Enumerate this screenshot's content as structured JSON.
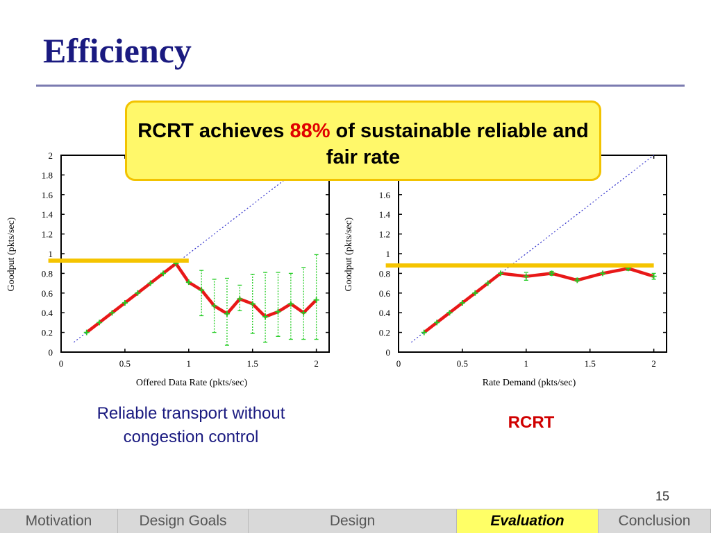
{
  "slide": {
    "title": "Efficiency",
    "page_number": "15"
  },
  "callout": {
    "text_before": "RCRT achieves ",
    "highlight": "88%",
    "text_after": " of sustainable reliable and fair rate"
  },
  "captions": {
    "left_line1": "Reliable transport without",
    "left_line2": "congestion control",
    "right": "RCRT"
  },
  "navigation": {
    "items": [
      {
        "label": "Motivation"
      },
      {
        "label": "Design Goals"
      },
      {
        "label": "Design"
      },
      {
        "label": "Evaluation"
      },
      {
        "label": "Conclusion"
      }
    ],
    "active_label": "Evaluation"
  },
  "colors": {
    "series": "#e81818",
    "error_bar": "#22cc22",
    "reference": "#3333cc",
    "sustainable_line": "#f5c400",
    "title": "#1a1a80",
    "callout_bg": "#fff86a"
  },
  "chart_data": [
    {
      "type": "line",
      "xlabel": "Offered Data Rate (pkts/sec)",
      "ylabel": "Goodput (pkts/sec)",
      "xlim": [
        0,
        2.1
      ],
      "ylim": [
        0,
        2
      ],
      "xticks": [
        0,
        0.5,
        1,
        1.5,
        2
      ],
      "xtick_labels": [
        "0",
        "0.5",
        "1",
        "1.5",
        "2"
      ],
      "yticks": [
        0,
        0.2,
        0.4,
        0.6,
        0.8,
        1,
        1.2,
        1.4,
        1.6,
        1.8,
        2
      ],
      "ytick_labels": [
        "0",
        "0.2",
        "0.4",
        "0.6",
        "0.8",
        "1",
        "1.2",
        "1.4",
        "1.6",
        "1.8",
        "2"
      ],
      "reference_line": {
        "style": "dotted",
        "points": [
          [
            0.1,
            0.1
          ],
          [
            2.0,
            2.0
          ]
        ]
      },
      "sustainable_rate": {
        "y": 0.93,
        "x_range": [
          -0.1,
          1.0
        ]
      },
      "series": [
        {
          "x": [
            0.2,
            0.3,
            0.4,
            0.5,
            0.6,
            0.7,
            0.8,
            0.9,
            1.0,
            1.1,
            1.2,
            1.3,
            1.4,
            1.5,
            1.6,
            1.7,
            1.8,
            1.9,
            2.0
          ],
          "y": [
            0.2,
            0.3,
            0.4,
            0.5,
            0.6,
            0.7,
            0.8,
            0.9,
            0.71,
            0.63,
            0.47,
            0.39,
            0.54,
            0.49,
            0.36,
            0.41,
            0.49,
            0.4,
            0.53
          ],
          "err_low": [
            0.2,
            0.3,
            0.4,
            0.5,
            0.6,
            0.7,
            0.8,
            0.9,
            0.71,
            0.37,
            0.2,
            0.07,
            0.42,
            0.19,
            0.1,
            0.16,
            0.13,
            0.13,
            0.13
          ],
          "err_high": [
            0.2,
            0.3,
            0.4,
            0.5,
            0.6,
            0.7,
            0.8,
            0.9,
            0.71,
            0.83,
            0.74,
            0.75,
            0.68,
            0.79,
            0.81,
            0.81,
            0.8,
            0.86,
            0.99
          ]
        }
      ]
    },
    {
      "type": "line",
      "xlabel": "Rate Demand (pkts/sec)",
      "ylabel": "Goodput (pkts/sec)",
      "xlim": [
        0,
        2.1
      ],
      "ylim": [
        0,
        2
      ],
      "xticks": [
        0,
        0.5,
        1,
        1.5,
        2
      ],
      "xtick_labels": [
        "0",
        "0.5",
        "1",
        "1.5",
        "2"
      ],
      "yticks": [
        0,
        0.2,
        0.4,
        0.6,
        0.8,
        1,
        1.2,
        1.4,
        1.6
      ],
      "ytick_labels": [
        "0",
        "0.2",
        "0.4",
        "0.6",
        "0.8",
        "1",
        "1.2",
        "1.4",
        "1.6"
      ],
      "reference_line": {
        "style": "dotted",
        "points": [
          [
            0.1,
            0.1
          ],
          [
            2.0,
            2.0
          ]
        ]
      },
      "sustainable_rate": {
        "y": 0.88,
        "x_range": [
          -0.1,
          2.0
        ]
      },
      "series": [
        {
          "x": [
            0.2,
            0.3,
            0.4,
            0.5,
            0.6,
            0.7,
            0.8,
            1.0,
            1.2,
            1.4,
            1.6,
            1.8,
            2.0
          ],
          "y": [
            0.2,
            0.3,
            0.4,
            0.5,
            0.6,
            0.7,
            0.8,
            0.77,
            0.8,
            0.73,
            0.8,
            0.85,
            0.77
          ],
          "err_low": [
            0.2,
            0.3,
            0.4,
            0.5,
            0.6,
            0.7,
            0.8,
            0.73,
            0.78,
            0.72,
            0.79,
            0.83,
            0.74
          ],
          "err_high": [
            0.2,
            0.3,
            0.4,
            0.5,
            0.6,
            0.7,
            0.8,
            0.81,
            0.82,
            0.75,
            0.81,
            0.87,
            0.8
          ]
        }
      ]
    }
  ]
}
